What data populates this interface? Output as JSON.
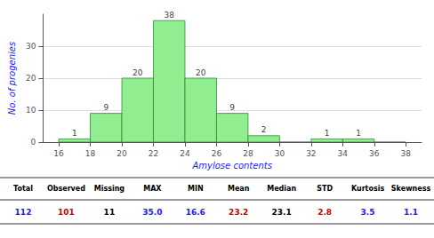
{
  "chart_data": {
    "type": "histogram",
    "xlabel": "Amylose contents",
    "ylabel": "No. of progenies",
    "bins": [
      16,
      18,
      20,
      22,
      24,
      26,
      28,
      30,
      32,
      34,
      36,
      38
    ],
    "values": [
      1,
      9,
      20,
      38,
      20,
      9,
      2,
      0,
      1,
      1,
      0
    ],
    "color": "#90EE90",
    "xlim": [
      15,
      39
    ],
    "xticks": [
      16,
      18,
      20,
      22,
      24,
      26,
      28,
      30,
      32,
      34,
      36,
      38
    ],
    "ylim": [
      0,
      40
    ],
    "yticks": [
      0,
      10,
      20,
      30
    ],
    "grid": true,
    "data_labels": true,
    "table": {
      "headers": [
        "Total",
        "Observed",
        "Missing",
        "MAX",
        "MIN",
        "Mean",
        "Median",
        "STD",
        "Kurtosis",
        "Skewness"
      ],
      "values": [
        "112",
        "101",
        "11",
        "35.0",
        "16.6",
        "23.2",
        "23.1",
        "2.8",
        "3.5",
        "1.1"
      ],
      "colors": [
        "#1a1aff",
        "#cc0000",
        "black",
        "#1a1aff",
        "#1a1aff",
        "#cc0000",
        "black",
        "#cc0000",
        "#1a1aff",
        "#1a1aff"
      ]
    }
  }
}
